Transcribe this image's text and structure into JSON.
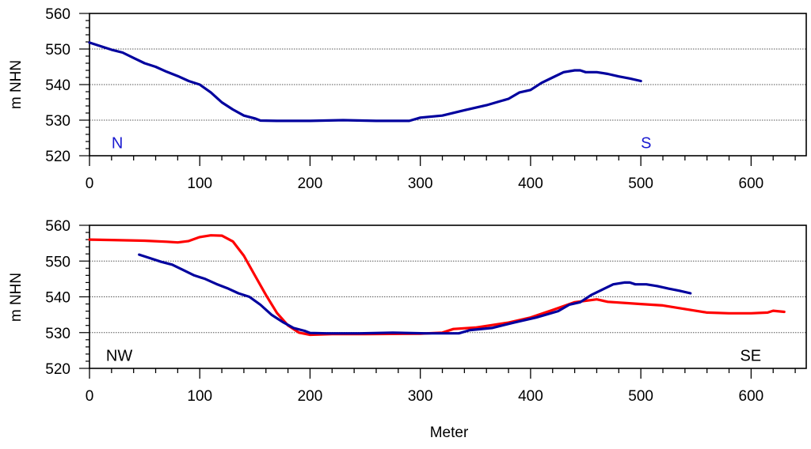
{
  "chart_data": [
    {
      "type": "line",
      "ylabel": "m NHN",
      "xlabel": "",
      "xlim": [
        0,
        650
      ],
      "ylim": [
        520,
        560
      ],
      "xticks": [
        0,
        100,
        200,
        300,
        400,
        500,
        600
      ],
      "yticks": [
        520,
        530,
        540,
        550,
        560
      ],
      "grid": "horizontal dotted at 530, 540, 550",
      "annotations": [
        {
          "text": "N",
          "x": 20,
          "y": 523,
          "color": "#1a1ad0"
        },
        {
          "text": "S",
          "x": 500,
          "y": 523,
          "color": "#1a1ad0"
        }
      ],
      "series": [
        {
          "color": "#00009e",
          "points": [
            [
              0,
              551.8
            ],
            [
              10,
              550.8
            ],
            [
              20,
              549.8
            ],
            [
              30,
              549
            ],
            [
              40,
              547.5
            ],
            [
              50,
              546
            ],
            [
              60,
              545
            ],
            [
              70,
              543.6
            ],
            [
              80,
              542.4
            ],
            [
              90,
              541
            ],
            [
              100,
              540
            ],
            [
              110,
              537.8
            ],
            [
              120,
              535
            ],
            [
              130,
              533
            ],
            [
              140,
              531.3
            ],
            [
              150,
              530.5
            ],
            [
              155,
              529.9
            ],
            [
              170,
              529.8
            ],
            [
              200,
              529.8
            ],
            [
              230,
              530
            ],
            [
              260,
              529.8
            ],
            [
              290,
              529.8
            ],
            [
              300,
              530.7
            ],
            [
              320,
              531.3
            ],
            [
              340,
              532.8
            ],
            [
              360,
              534.2
            ],
            [
              380,
              536
            ],
            [
              390,
              537.8
            ],
            [
              400,
              538.5
            ],
            [
              410,
              540.5
            ],
            [
              420,
              542
            ],
            [
              430,
              543.5
            ],
            [
              440,
              544
            ],
            [
              445,
              544
            ],
            [
              450,
              543.5
            ],
            [
              460,
              543.5
            ],
            [
              470,
              543
            ],
            [
              480,
              542.3
            ],
            [
              490,
              541.7
            ],
            [
              500,
              541
            ]
          ]
        }
      ]
    },
    {
      "type": "line",
      "ylabel": "m NHN",
      "xlabel": "Meter",
      "xlim": [
        0,
        650
      ],
      "ylim": [
        520,
        560
      ],
      "xticks": [
        0,
        100,
        200,
        300,
        400,
        500,
        600
      ],
      "yticks": [
        520,
        530,
        540,
        550,
        560
      ],
      "grid": "horizontal dotted at 530, 540, 550",
      "annotations": [
        {
          "text": "NW",
          "x": 15,
          "y": 523,
          "color": "#000000"
        },
        {
          "text": "SE",
          "x": 590,
          "y": 523,
          "color": "#000000"
        }
      ],
      "series": [
        {
          "color": "#ff0000",
          "points": [
            [
              0,
              556
            ],
            [
              20,
              555.9
            ],
            [
              50,
              555.7
            ],
            [
              70,
              555.4
            ],
            [
              80,
              555.2
            ],
            [
              90,
              555.6
            ],
            [
              100,
              556.7
            ],
            [
              110,
              557.2
            ],
            [
              120,
              557.1
            ],
            [
              130,
              555.5
            ],
            [
              140,
              551.5
            ],
            [
              150,
              546
            ],
            [
              160,
              540.5
            ],
            [
              170,
              535.5
            ],
            [
              180,
              532
            ],
            [
              190,
              530
            ],
            [
              200,
              529.4
            ],
            [
              220,
              529.6
            ],
            [
              250,
              529.6
            ],
            [
              300,
              529.7
            ],
            [
              320,
              530
            ],
            [
              330,
              531
            ],
            [
              350,
              531.4
            ],
            [
              380,
              532.8
            ],
            [
              400,
              534.2
            ],
            [
              420,
              536.3
            ],
            [
              440,
              538.5
            ],
            [
              460,
              539.3
            ],
            [
              470,
              538.6
            ],
            [
              500,
              538
            ],
            [
              520,
              537.6
            ],
            [
              540,
              536.6
            ],
            [
              560,
              535.6
            ],
            [
              580,
              535.4
            ],
            [
              600,
              535.4
            ],
            [
              615,
              535.6
            ],
            [
              620,
              536.1
            ],
            [
              630,
              535.8
            ]
          ]
        },
        {
          "color": "#00009e",
          "points": [
            [
              45,
              551.8
            ],
            [
              55,
              550.8
            ],
            [
              65,
              549.8
            ],
            [
              75,
              549
            ],
            [
              85,
              547.5
            ],
            [
              95,
              546
            ],
            [
              105,
              545
            ],
            [
              115,
              543.6
            ],
            [
              125,
              542.4
            ],
            [
              135,
              541
            ],
            [
              145,
              540
            ],
            [
              155,
              537.8
            ],
            [
              165,
              535
            ],
            [
              175,
              533
            ],
            [
              185,
              531.3
            ],
            [
              195,
              530.5
            ],
            [
              200,
              529.9
            ],
            [
              215,
              529.8
            ],
            [
              245,
              529.8
            ],
            [
              275,
              530
            ],
            [
              305,
              529.8
            ],
            [
              335,
              529.8
            ],
            [
              345,
              530.7
            ],
            [
              365,
              531.3
            ],
            [
              385,
              532.8
            ],
            [
              405,
              534.2
            ],
            [
              425,
              536
            ],
            [
              435,
              537.8
            ],
            [
              445,
              538.5
            ],
            [
              455,
              540.5
            ],
            [
              465,
              542
            ],
            [
              475,
              543.5
            ],
            [
              485,
              544
            ],
            [
              490,
              544
            ],
            [
              495,
              543.5
            ],
            [
              505,
              543.5
            ],
            [
              515,
              543
            ],
            [
              525,
              542.3
            ],
            [
              535,
              541.7
            ],
            [
              545,
              541
            ]
          ]
        }
      ]
    }
  ]
}
